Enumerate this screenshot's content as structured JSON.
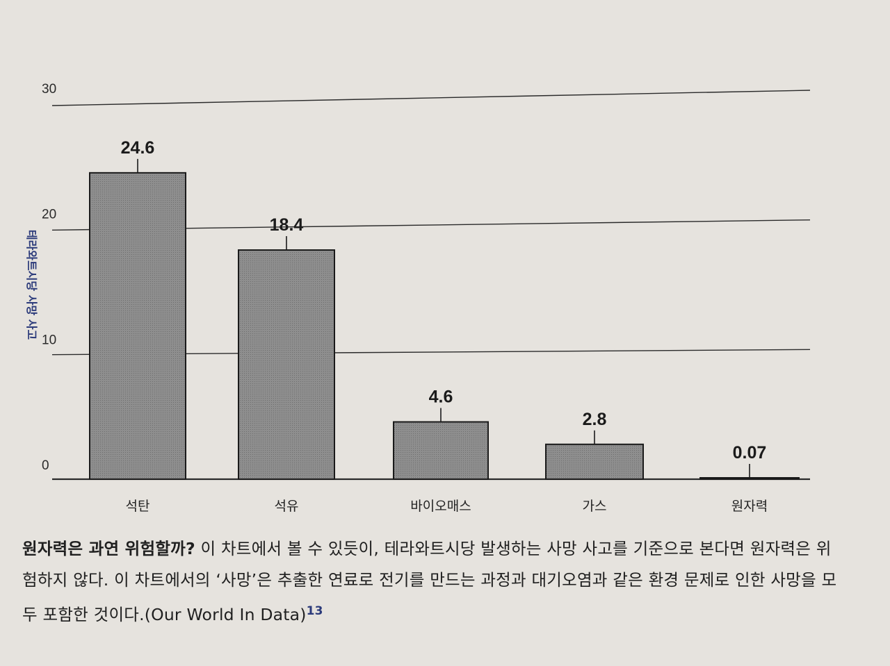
{
  "chart_data": {
    "type": "bar",
    "ylabel": "테라와트시당 사망 사고",
    "ylim": [
      0,
      30
    ],
    "yticks": [
      0,
      10,
      20,
      30
    ],
    "grid": true,
    "categories": [
      "석탄",
      "석유",
      "바이오매스",
      "가스",
      "원자력"
    ],
    "values": [
      24.6,
      18.4,
      4.6,
      2.8,
      0.07
    ],
    "value_labels": [
      "24.6",
      "18.4",
      "4.6",
      "2.8",
      "0.07"
    ],
    "colors": {
      "bar_fill": "#8a8a8a",
      "bar_stroke": "#1a1a1a",
      "grid": "#2a2a2a",
      "axis_label": "#2b3a7a"
    }
  },
  "caption": {
    "lead": "원자력은 과연 위험할까?",
    "body": " 이 차트에서 볼 수 있듯이, 테라와트시당 발생하는 사망 사고를 기준으로 본다면 원자력은 위험하지 않다. 이 차트에서의 ‘사망’은 추출한 연료로 전기를 만드는 과정과 대기오염과 같은 환경 문제로 인한 사망을 모두 포함한 것이다.(Our World In Data)",
    "footnote": "13"
  }
}
